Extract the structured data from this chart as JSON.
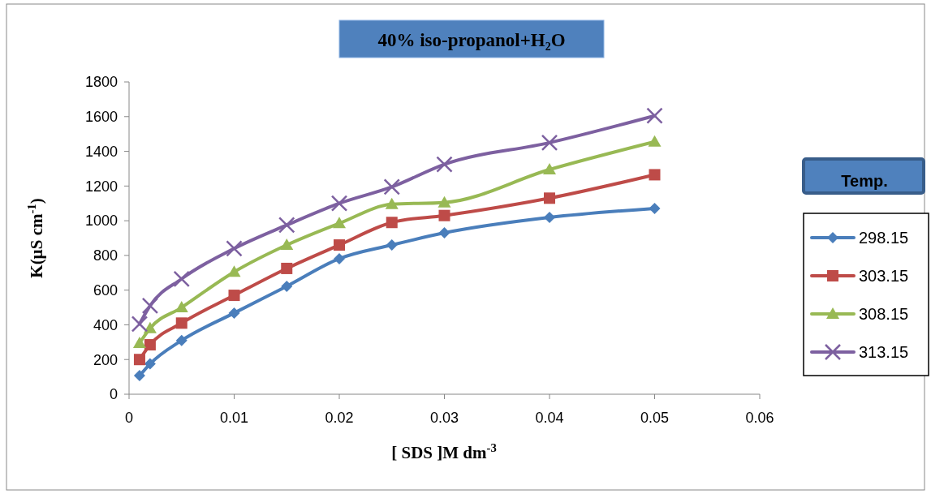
{
  "chart_data": {
    "type": "line",
    "title": "40% iso-propanol+H₂O",
    "xlabel": "[ SDS ]M dm$^{-3}$",
    "ylabel": "K(µS cm$^{-1}$)",
    "legend_title": "Temp.",
    "legend": "right",
    "grid": false,
    "x": [
      0.001,
      0.002,
      0.005,
      0.01,
      0.015,
      0.02,
      0.025,
      0.03,
      0.04,
      0.05
    ],
    "xlim": [
      0,
      0.06
    ],
    "xticks": [
      0,
      0.01,
      0.02,
      0.03,
      0.04,
      0.05,
      0.06
    ],
    "ylim": [
      0,
      1800
    ],
    "yticks": [
      0,
      200,
      400,
      600,
      800,
      1000,
      1200,
      1400,
      1600,
      1800
    ],
    "series": [
      {
        "name": "298.15",
        "color": "#4a7ebb",
        "marker": "diamond",
        "values": [
          107,
          175,
          310,
          468,
          622,
          781,
          860,
          930,
          1019,
          1071
        ]
      },
      {
        "name": "303.15",
        "color": "#be4b48",
        "marker": "square",
        "values": [
          200,
          285,
          410,
          570,
          725,
          860,
          990,
          1030,
          1130,
          1265
        ]
      },
      {
        "name": "308.15",
        "color": "#98b954",
        "marker": "triangle",
        "values": [
          295,
          380,
          500,
          705,
          860,
          985,
          1095,
          1105,
          1295,
          1455
        ]
      },
      {
        "name": "313.15",
        "color": "#7d60a0",
        "marker": "cross",
        "values": [
          405,
          510,
          665,
          840,
          975,
          1100,
          1195,
          1325,
          1450,
          1605
        ]
      }
    ]
  }
}
